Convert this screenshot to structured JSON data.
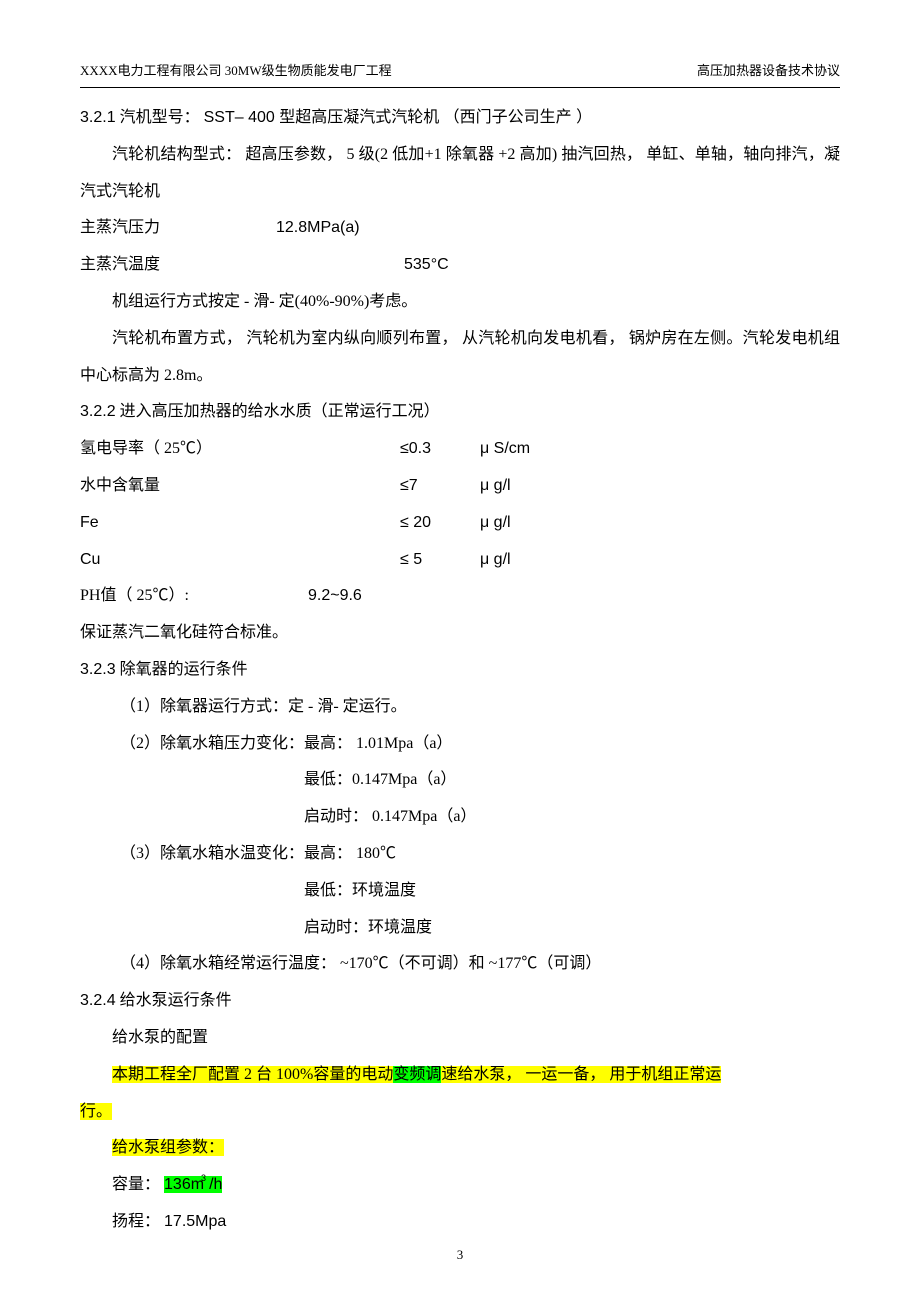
{
  "header": {
    "left": "XXXX电力工程有限公司    30MW级生物质能发电厂工程",
    "right": "高压加热器设备技术协议"
  },
  "s321": {
    "num": "3.2.1",
    "title": "汽机型号：",
    "model": "SST– 400 型超高压凝汽式汽轮机 （西门子公司生产  ）",
    "struct": "汽轮机结构型式： 超高压参数， 5 级(2 低加+1 除氧器 +2 高加) 抽汽回热， 单缸、单轴，轴向排汽，凝汽式汽轮机",
    "steam_pressure_label": "主蒸汽压力",
    "steam_pressure_value": "12.8MPa(a)",
    "steam_temp_label": "主蒸汽温度",
    "steam_temp_value": "535°C",
    "op_mode": "机组运行方式按定  - 滑- 定(40%-90%)考虑。",
    "layout": "汽轮机布置方式， 汽轮机为室内纵向顺列布置，  从汽轮机向发电机看，  锅炉房在左侧。汽轮发电机组中心标高为   2.8m。"
  },
  "s322": {
    "num": "3.2.2",
    "title": "进入高压加热器的给水水质（正常运行工况）",
    "rows": [
      {
        "label": "氢电导率（ 25℃）",
        "value": "≤0.3",
        "unit": "μ S/cm"
      },
      {
        "label": "水中含氧量",
        "value": "≤7",
        "unit": "μ g/l"
      },
      {
        "label": "Fe",
        "value": "≤ 20",
        "unit": "μ g/l"
      },
      {
        "label": "Cu",
        "value": "≤ 5",
        "unit": "μ g/l"
      }
    ],
    "ph_label": "PH值（ 25℃）:",
    "ph_value": "9.2~9.6",
    "note": "保证蒸汽二氧化硅符合标准。"
  },
  "s323": {
    "num": "3.2.3",
    "title": "除氧器的运行条件",
    "i1": "（1）除氧器运行方式：定  - 滑- 定运行。",
    "i2": "（2）除氧水箱压力变化：最高：   1.01Mpa（a）",
    "i2b": "最低：0.147Mpa（a）",
    "i2c": "启动时： 0.147Mpa（a）",
    "i3": "（3）除氧水箱水温变化：最高：   180℃",
    "i3b": "最低：环境温度",
    "i3c": "启动时：环境温度",
    "i4": "（4）除氧水箱经常运行温度：  ~170℃（不可调）和 ~177℃（可调）"
  },
  "s324": {
    "num": "3.2.4",
    "title": "给水泵运行条件",
    "config": "给水泵的配置",
    "hl1a": "本期工程全厂配置   2 台 100%容量的电动",
    "hl1b": "变频调",
    "hl1c": "速给水泵，  一运一备， 用于机组正常运",
    "hl1d": "行。",
    "hl2": "给水泵组参数：",
    "cap_label": "容量：",
    "cap_value": "136m",
    "cap_sup": "3",
    "cap_unit": "/h",
    "head_label": "扬程：",
    "head_value": "17.5Mpa"
  },
  "pagenum": "3",
  "colors": {
    "yellow": "#ffff00",
    "green": "#00ff00",
    "text": "#000000",
    "bg": "#ffffff"
  }
}
